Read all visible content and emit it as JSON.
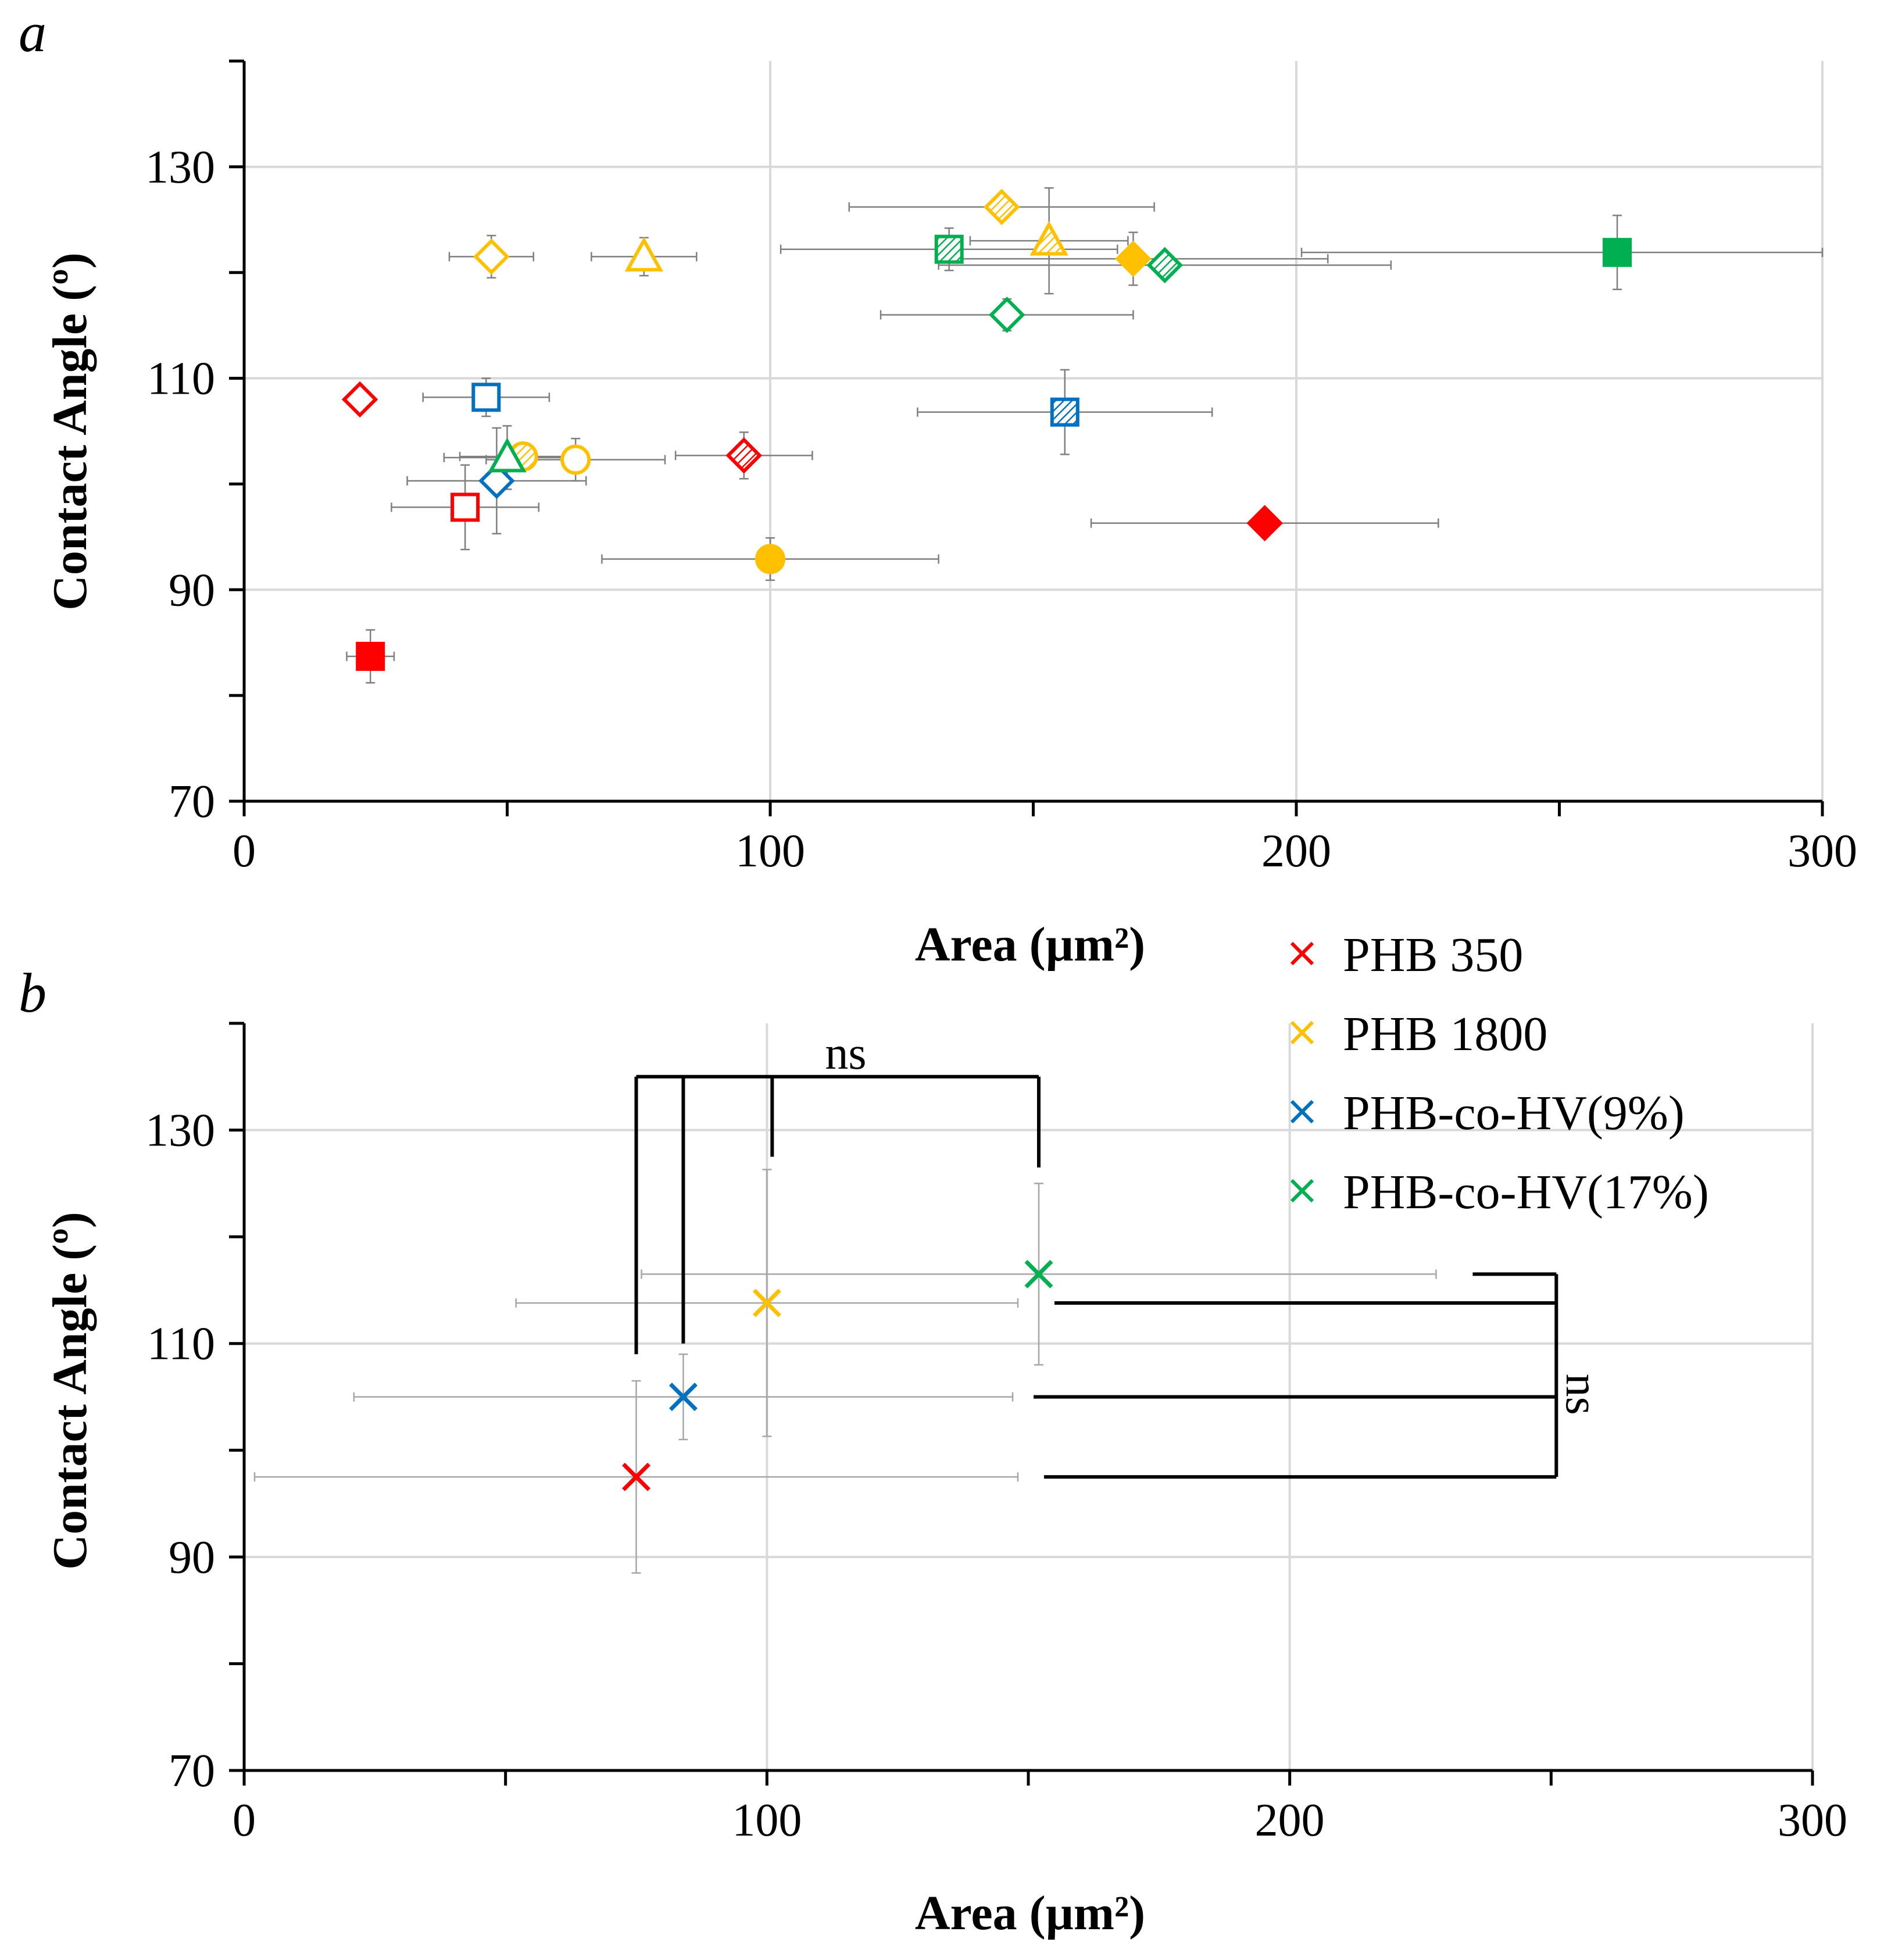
{
  "colors": {
    "red": "#ff0000",
    "yellow": "#ffc000",
    "blue": "#0070c0",
    "green": "#00b050",
    "grid": "#d9d9d9",
    "errorbar": "#7f7f7f",
    "axis": "#000000"
  },
  "chart_data": [
    {
      "panel": "a",
      "type": "scatter",
      "xlabel": "Area (µm²)",
      "ylabel": "Contact Angle (º)",
      "xlim": [
        0,
        300
      ],
      "ylim": [
        70,
        140
      ],
      "xticks": [
        0,
        100,
        200,
        300
      ],
      "xtick_labels": [
        "0",
        "100",
        "200",
        "300"
      ],
      "yticks": [
        70,
        90,
        110,
        130
      ],
      "ytick_labels": [
        "70",
        "90",
        "110",
        "130"
      ],
      "grid": true,
      "points": [
        {
          "series": "PHB 350",
          "marker": "square",
          "fill": "solid",
          "x": 24,
          "y": 83.7,
          "xerr": 4.5,
          "yerr": 2.5
        },
        {
          "series": "PHB 350",
          "marker": "diamond",
          "fill": "open",
          "x": 22,
          "y": 108,
          "xerr": 0,
          "yerr": 0
        },
        {
          "series": "PHB 350",
          "marker": "square",
          "fill": "open",
          "x": 42,
          "y": 97.8,
          "xerr": 14,
          "yerr": 4
        },
        {
          "series": "PHB 350",
          "marker": "diamond",
          "fill": "hatched",
          "x": 95,
          "y": 102.7,
          "xerr": 13,
          "yerr": 2.2
        },
        {
          "series": "PHB 350",
          "marker": "diamond",
          "fill": "solid",
          "x": 194,
          "y": 96.3,
          "xerr": 33,
          "yerr": 0
        },
        {
          "series": "PHB 1800",
          "marker": "diamond",
          "fill": "open",
          "x": 47,
          "y": 121.5,
          "xerr": 8,
          "yerr": 2
        },
        {
          "series": "PHB 1800",
          "marker": "triangle",
          "fill": "open",
          "x": 76,
          "y": 121.5,
          "xerr": 10,
          "yerr": 1.8
        },
        {
          "series": "PHB 1800",
          "marker": "circle",
          "fill": "hatched",
          "x": 53,
          "y": 102.6,
          "xerr": 12,
          "yerr": 0
        },
        {
          "series": "PHB 1800",
          "marker": "circle",
          "fill": "open",
          "x": 63,
          "y": 102.3,
          "xerr": 17,
          "yerr": 2
        },
        {
          "series": "PHB 1800",
          "marker": "circle",
          "fill": "solid",
          "x": 100,
          "y": 92.9,
          "xerr": 32,
          "yerr": 2
        },
        {
          "series": "PHB 1800",
          "marker": "diamond",
          "fill": "hatched",
          "x": 144,
          "y": 126.2,
          "xerr": 29,
          "yerr": 0
        },
        {
          "series": "PHB 1800",
          "marker": "triangle",
          "fill": "hatched",
          "x": 153,
          "y": 123,
          "xerr": 15,
          "yerr": 5
        },
        {
          "series": "PHB 1800",
          "marker": "diamond",
          "fill": "solid",
          "x": 169,
          "y": 121.3,
          "xerr": 37,
          "yerr": 2.5
        },
        {
          "series": "PHB-co-HV(9%)",
          "marker": "square",
          "fill": "open",
          "x": 46,
          "y": 108.2,
          "xerr": 12,
          "yerr": 1.8
        },
        {
          "series": "PHB-co-HV(9%)",
          "marker": "diamond",
          "fill": "open",
          "x": 48,
          "y": 100.3,
          "xerr": 17,
          "yerr": 5
        },
        {
          "series": "PHB-co-HV(9%)",
          "marker": "square",
          "fill": "hatched",
          "x": 156,
          "y": 106.8,
          "xerr": 28,
          "yerr": 4
        },
        {
          "series": "PHB-co-HV(17%)",
          "marker": "triangle",
          "fill": "open",
          "x": 50,
          "y": 102.5,
          "xerr": 12,
          "yerr": 3
        },
        {
          "series": "PHB-co-HV(17%)",
          "marker": "square",
          "fill": "hatched",
          "x": 134,
          "y": 122.2,
          "xerr": 32,
          "yerr": 2
        },
        {
          "series": "PHB-co-HV(17%)",
          "marker": "diamond",
          "fill": "hatched",
          "x": 175,
          "y": 120.7,
          "xerr": 43,
          "yerr": 0
        },
        {
          "series": "PHB-co-HV(17%)",
          "marker": "diamond",
          "fill": "open",
          "x": 145,
          "y": 116,
          "xerr": 24,
          "yerr": 1.5
        },
        {
          "series": "PHB-co-HV(17%)",
          "marker": "square",
          "fill": "solid",
          "x": 261,
          "y": 121.9,
          "xerr": 60,
          "yerr": 3.5
        }
      ]
    },
    {
      "panel": "b",
      "type": "scatter",
      "xlabel": "Area (µm²)",
      "ylabel": "Contact Angle (º)",
      "xlim": [
        0,
        300
      ],
      "ylim": [
        70,
        140
      ],
      "xticks": [
        0,
        100,
        200,
        300
      ],
      "xtick_labels": [
        "0",
        "100",
        "200",
        "300"
      ],
      "yticks": [
        70,
        90,
        110,
        130
      ],
      "ytick_labels": [
        "70",
        "90",
        "110",
        "130"
      ],
      "grid": true,
      "legend_position": "top-right",
      "series": [
        {
          "name": "PHB 350",
          "color_key": "red",
          "x": 75,
          "y": 97.5,
          "xerr": 73,
          "yerr": 9
        },
        {
          "name": "PHB 1800",
          "color_key": "yellow",
          "x": 100,
          "y": 113.8,
          "xerr": 48,
          "yerr": 12.5
        },
        {
          "name": "PHB-co-HV(9%)",
          "color_key": "blue",
          "x": 84,
          "y": 105,
          "xerr": 63,
          "yerr": 4
        },
        {
          "name": "PHB-co-HV(17%)",
          "color_key": "green",
          "x": 152,
          "y": 116.5,
          "xerr": 76,
          "yerr": 8.5
        }
      ],
      "annotations": [
        {
          "text": "ns",
          "type": "significance",
          "orientation": "horizontal",
          "x_from": 75,
          "x_to": 152,
          "y": 135
        },
        {
          "text": "ns",
          "type": "significance",
          "orientation": "vertical",
          "x": 251,
          "y_from": 97.5,
          "y_to": 116.5
        }
      ]
    }
  ]
}
